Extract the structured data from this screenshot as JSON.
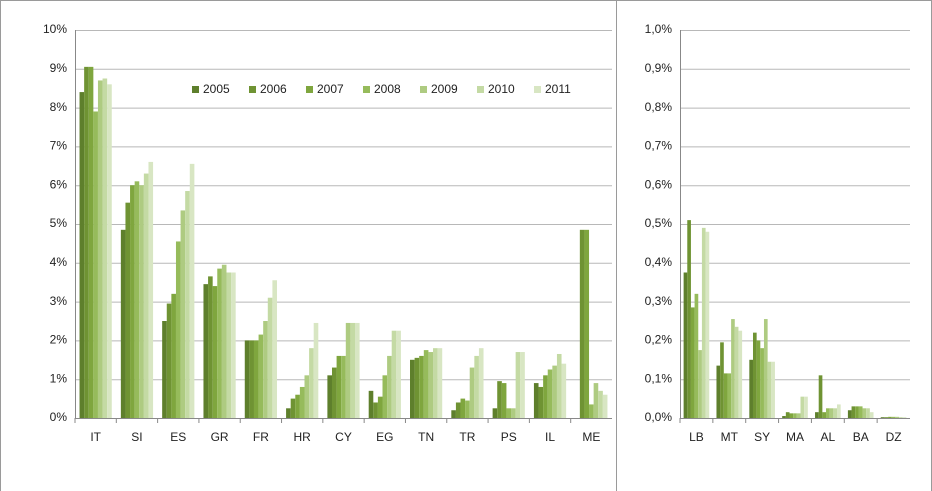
{
  "chart_data": [
    {
      "type": "bar",
      "categories": [
        "IT",
        "SI",
        "ES",
        "GR",
        "FR",
        "HR",
        "CY",
        "EG",
        "TN",
        "TR",
        "PS",
        "IL",
        "ME"
      ],
      "series": [
        {
          "name": "2005",
          "color": "#5e7f2c",
          "values": [
            8.4,
            4.85,
            2.5,
            3.45,
            2.0,
            0.25,
            1.1,
            0.7,
            1.5,
            0.2,
            0.25,
            0.9,
            null
          ]
        },
        {
          "name": "2006",
          "color": "#6f9333",
          "values": [
            9.05,
            5.55,
            2.95,
            3.65,
            2.0,
            0.5,
            1.3,
            0.4,
            1.55,
            0.4,
            0.95,
            0.8,
            4.85
          ]
        },
        {
          "name": "2007",
          "color": "#7fa63e",
          "values": [
            9.05,
            6.0,
            3.2,
            3.4,
            2.0,
            0.6,
            1.6,
            0.55,
            1.6,
            0.5,
            0.9,
            1.1,
            4.85
          ]
        },
        {
          "name": "2008",
          "color": "#96bb5b",
          "values": [
            7.9,
            6.1,
            4.55,
            3.85,
            2.15,
            0.8,
            1.6,
            1.1,
            1.75,
            0.45,
            0.25,
            1.25,
            0.35
          ]
        },
        {
          "name": "2009",
          "color": "#aecb81",
          "values": [
            8.7,
            6.0,
            5.35,
            3.95,
            2.5,
            1.1,
            2.45,
            1.6,
            1.7,
            1.3,
            0.25,
            1.35,
            0.9
          ]
        },
        {
          "name": "2010",
          "color": "#c4daa4",
          "values": [
            8.75,
            6.3,
            5.85,
            3.75,
            3.1,
            1.8,
            2.45,
            2.25,
            1.8,
            1.6,
            1.7,
            1.65,
            0.7
          ]
        },
        {
          "name": "2011",
          "color": "#d8e6c3",
          "values": [
            8.6,
            6.6,
            6.55,
            3.75,
            3.55,
            2.45,
            2.45,
            2.25,
            1.8,
            1.8,
            1.7,
            1.4,
            0.6
          ]
        }
      ],
      "ylim": [
        0,
        10
      ],
      "yticks": [
        {
          "value": 0,
          "label": "0%"
        },
        {
          "value": 1,
          "label": "1%"
        },
        {
          "value": 2,
          "label": "2%"
        },
        {
          "value": 3,
          "label": "3%"
        },
        {
          "value": 4,
          "label": "4%"
        },
        {
          "value": 5,
          "label": "5%"
        },
        {
          "value": 6,
          "label": "6%"
        },
        {
          "value": 7,
          "label": "7%"
        },
        {
          "value": 8,
          "label": "8%"
        },
        {
          "value": 9,
          "label": "9%"
        },
        {
          "value": 10,
          "label": "10%"
        }
      ],
      "grid": true,
      "legend": "top-right"
    },
    {
      "type": "bar",
      "categories": [
        "LB",
        "MT",
        "SY",
        "MA",
        "AL",
        "BA",
        "DZ"
      ],
      "series": [
        {
          "color": "#5e7f2c",
          "values": [
            0.375,
            0.135,
            0.15,
            0.005,
            0.015,
            0.02,
            0.002
          ]
        },
        {
          "color": "#6f9333",
          "values": [
            0.51,
            0.195,
            0.22,
            0.015,
            0.11,
            0.03,
            0.002
          ]
        },
        {
          "color": "#7fa63e",
          "values": [
            0.285,
            0.115,
            0.2,
            0.012,
            0.015,
            0.03,
            0.003
          ]
        },
        {
          "color": "#96bb5b",
          "values": [
            0.32,
            0.115,
            0.18,
            0.012,
            0.025,
            0.03,
            0.003
          ]
        },
        {
          "color": "#aecb81",
          "values": [
            0.175,
            0.255,
            0.255,
            0.012,
            0.025,
            0.025,
            0.003
          ]
        },
        {
          "color": "#c4daa4",
          "values": [
            0.49,
            0.235,
            0.145,
            0.055,
            0.025,
            0.025,
            0.002
          ]
        },
        {
          "color": "#d8e6c3",
          "values": [
            0.48,
            0.225,
            0.145,
            0.055,
            0.035,
            0.015,
            0.002
          ]
        }
      ],
      "ylim": [
        0,
        1
      ],
      "yticks": [
        {
          "value": 0,
          "label": "0,0%"
        },
        {
          "value": 0.1,
          "label": "0,1%"
        },
        {
          "value": 0.2,
          "label": "0,2%"
        },
        {
          "value": 0.3,
          "label": "0,3%"
        },
        {
          "value": 0.4,
          "label": "0,4%"
        },
        {
          "value": 0.5,
          "label": "0,5%"
        },
        {
          "value": 0.6,
          "label": "0,6%"
        },
        {
          "value": 0.7,
          "label": "0,7%"
        },
        {
          "value": 0.8,
          "label": "0,8%"
        },
        {
          "value": 0.9,
          "label": "0,9%"
        },
        {
          "value": 1,
          "label": "1,0%"
        }
      ],
      "grid": true
    }
  ]
}
